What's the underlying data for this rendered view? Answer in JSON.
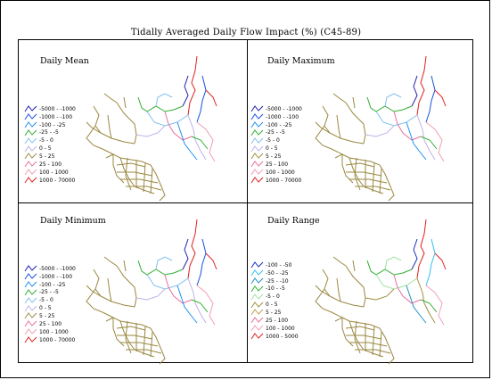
{
  "title": "Tidally Averaged Daily Flow Impact (%) (C45-89)",
  "panels": [
    {
      "id": "mean",
      "title": "Daily Mean",
      "legend": [
        {
          "label": "-5000 - -1000",
          "color": "#2020b0"
        },
        {
          "label": "-1000 - -100",
          "color": "#1850e0"
        },
        {
          "label": "-100 - -25",
          "color": "#2090f0"
        },
        {
          "label": "-25 - -5",
          "color": "#30b030"
        },
        {
          "label": "-5 - 0",
          "color": "#80c0f0"
        },
        {
          "label": "0 - 5",
          "color": "#c0b0e8"
        },
        {
          "label": "5 - 25",
          "color": "#a09040"
        },
        {
          "label": "25 - 100",
          "color": "#e870a0"
        },
        {
          "label": "100 - 1000",
          "color": "#f0a0b0"
        },
        {
          "label": "1000 - 70000",
          "color": "#e02020"
        }
      ]
    },
    {
      "id": "max",
      "title": "Daily Maximum",
      "legend": [
        {
          "label": "-5000 - -1000",
          "color": "#2020b0"
        },
        {
          "label": "-1000 - -100",
          "color": "#1850e0"
        },
        {
          "label": "-100 - -25",
          "color": "#2090f0"
        },
        {
          "label": "-25 - -5",
          "color": "#30b030"
        },
        {
          "label": "-5 - 0",
          "color": "#80c0f0"
        },
        {
          "label": "0 - 5",
          "color": "#c0b0e8"
        },
        {
          "label": "5 - 25",
          "color": "#a09040"
        },
        {
          "label": "25 - 100",
          "color": "#e870a0"
        },
        {
          "label": "100 - 1000",
          "color": "#f0a0b0"
        },
        {
          "label": "1000 - 70000",
          "color": "#e02020"
        }
      ]
    },
    {
      "id": "min",
      "title": "Daily Minimum",
      "legend": [
        {
          "label": "-5000 - -1000",
          "color": "#2020b0"
        },
        {
          "label": "-1000 - -100",
          "color": "#1850e0"
        },
        {
          "label": "-100 - -25",
          "color": "#2090f0"
        },
        {
          "label": "-25 - -5",
          "color": "#30b030"
        },
        {
          "label": "-5 - 0",
          "color": "#80c0f0"
        },
        {
          "label": "0 - 5",
          "color": "#c0b0e8"
        },
        {
          "label": "5 - 25",
          "color": "#a09040"
        },
        {
          "label": "25 - 100",
          "color": "#e870a0"
        },
        {
          "label": "100 - 1000",
          "color": "#f0a0b0"
        },
        {
          "label": "1000 - 70000",
          "color": "#e02020"
        }
      ]
    },
    {
      "id": "range",
      "title": "Daily Range",
      "legend": [
        {
          "label": "-100 - -50",
          "color": "#1830c0"
        },
        {
          "label": "-50 - -25",
          "color": "#30c0f0"
        },
        {
          "label": "-25 - -10",
          "color": "#2090c0"
        },
        {
          "label": "-10 - -5",
          "color": "#30b030"
        },
        {
          "label": "-5 - 0",
          "color": "#a0e0a0"
        },
        {
          "label": "0 - 5",
          "color": "#a09040"
        },
        {
          "label": "5 - 25",
          "color": "#c0a050"
        },
        {
          "label": "25 - 100",
          "color": "#e870a0"
        },
        {
          "label": "100 - 1000",
          "color": "#f0a0c0"
        },
        {
          "label": "1000 - 5000",
          "color": "#e02020"
        }
      ]
    }
  ]
}
